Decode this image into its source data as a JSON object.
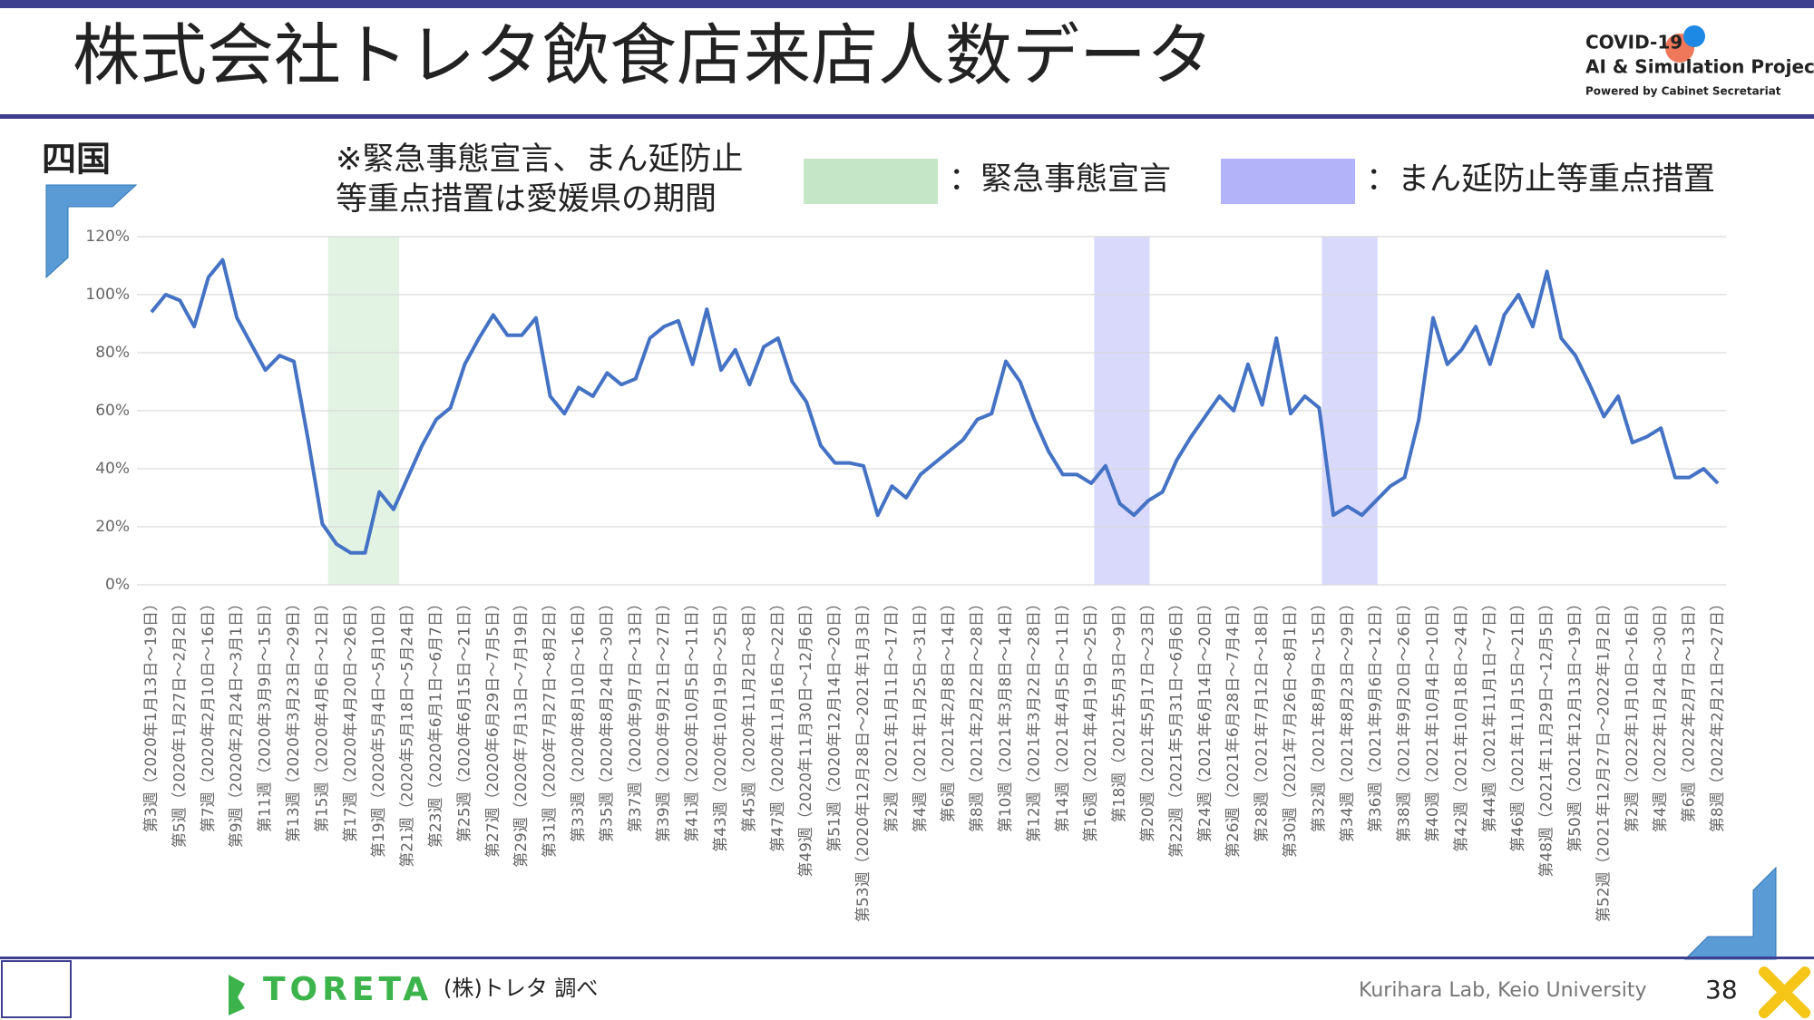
{
  "chart_data": {
    "type": "line",
    "title": "株式会社トレタ飲食店来店人数データ",
    "region": "四国",
    "note_lines": [
      "※緊急事態宣言、まん延防止",
      "等重点措置は愛媛県の期間"
    ],
    "period_legend": [
      {
        "label": "：緊急事態宣言",
        "color": "#c5e7c7",
        "periods": [
          [
            12.4,
            17.4
          ]
        ]
      },
      {
        "label": "：まん延防止等重点措置",
        "color": "#b3b3f9",
        "periods": [
          [
            66.2,
            70.1
          ],
          [
            82.2,
            86.1
          ]
        ]
      }
    ],
    "color": "#4472c4",
    "ylim": [
      0,
      120
    ],
    "yticks": [
      {
        "value": 0,
        "label": "0%"
      },
      {
        "value": 20,
        "label": "20%"
      },
      {
        "value": 40,
        "label": "40%"
      },
      {
        "value": 60,
        "label": "60%"
      },
      {
        "value": 80,
        "label": "80%"
      },
      {
        "value": 100,
        "label": "100%"
      },
      {
        "value": 120,
        "label": "120%"
      }
    ],
    "grid": true,
    "categories": [
      "第3週（2020年1月13日～19日）",
      null,
      "第5週（2020年1月27日～2月2日）",
      null,
      "第7週（2020年2月10日～16日）",
      null,
      "第9週（2020年2月24日～3月1日）",
      null,
      "第11週（2020年3月9日～15日）",
      null,
      "第13週（2020年3月23日～29日）",
      null,
      "第15週（2020年4月6日～12日）",
      null,
      "第17週（2020年4月20日～26日）",
      null,
      "第19週（2020年5月4日～5月10日）",
      null,
      "第21週（2020年5月18日～5月24日）",
      null,
      "第23週（2020年6月1日～6月7日）",
      null,
      "第25週（2020年6月15日～21日）",
      null,
      "第27週（2020年6月29日～7月5日）",
      null,
      "第29週（2020年7月13日～7月19日）",
      null,
      "第31週（2020年7月27日～8月2日）",
      null,
      "第33週（2020年8月10日～16日）",
      null,
      "第35週（2020年8月24日～30日）",
      null,
      "第37週（2020年9月7日～13日）",
      null,
      "第39週（2020年9月21日～27日）",
      null,
      "第41週（2020年10月5日～11日）",
      null,
      "第43週（2020年10月19日～25日）",
      null,
      "第45週（2020年11月2日～8日）",
      null,
      "第47週（2020年11月16日～22日）",
      null,
      "第49週（2020年11月30日～12月6日）",
      null,
      "第51週（2020年12月14日～20日）",
      null,
      "第53週（2020年12月28日～2021年1月3日）",
      null,
      "第2週（2021年1月11日～17日）",
      null,
      "第4週（2021年1月25日～31日）",
      null,
      "第6週（2021年2月8日～14日）",
      null,
      "第8週（2021年2月22日～28日）",
      null,
      "第10週（2021年3月8日～14日）",
      null,
      "第12週（2021年3月22日～28日）",
      null,
      "第14週（2021年4月5日～11日）",
      null,
      "第16週（2021年4月19日～25日）",
      null,
      "第18週（2021年5月3日～9日）",
      null,
      "第20週（2021年5月17日～23日）",
      null,
      "第22週（2021年5月31日～6月6日）",
      null,
      "第24週（2021年6月14日～20日）",
      null,
      "第26週（2021年6月28日～7月4日）",
      null,
      "第28週（2021年7月12日～18日）",
      null,
      "第30週（2021年7月26日～8月1日）",
      null,
      "第32週（2021年8月9日～15日）",
      null,
      "第34週（2021年8月23日～29日）",
      null,
      "第36週（2021年9月6日～12日）",
      null,
      "第38週（2021年9月20日～26日）",
      null,
      "第40週（2021年10月4日～10日）",
      null,
      "第42週（2021年10月18日～24日）",
      null,
      "第44週（2021年11月1日～7日）",
      null,
      "第46週（2021年11月15日～21日）",
      null,
      "第48週（2021年11月29日～12月5日）",
      null,
      "第50週（2021年12月13日～19日）",
      null,
      "第52週（2021年12月27日～2022年1月2日）",
      null,
      "第2週（2022年1月10日～16日）",
      null,
      "第4週（2022年1月24日～30日）",
      null,
      "第6週（2022年2月7日～13日）",
      null,
      "第8週（2022年2月21日～27日）"
    ],
    "values": [
      94,
      100,
      98,
      89,
      106,
      112,
      92,
      83,
      74,
      79,
      77,
      50,
      21,
      14,
      11,
      11,
      32,
      26,
      37,
      48,
      57,
      61,
      76,
      85,
      93,
      86,
      86,
      92,
      65,
      59,
      68,
      65,
      73,
      69,
      71,
      85,
      89,
      91,
      76,
      95,
      74,
      81,
      69,
      82,
      85,
      70,
      63,
      48,
      42,
      42,
      41,
      24,
      34,
      30,
      38,
      42,
      46,
      50,
      57,
      59,
      77,
      70,
      57,
      46,
      38,
      38,
      35,
      41,
      28,
      24,
      29,
      32,
      43,
      51,
      58,
      65,
      60,
      76,
      62,
      85,
      59,
      65,
      61,
      24,
      27,
      24,
      29,
      34,
      37,
      57,
      92,
      76,
      81,
      89,
      76,
      93,
      100,
      89,
      108,
      85,
      79,
      69,
      58,
      65,
      49,
      51,
      54,
      37,
      37,
      40,
      35
    ]
  },
  "logo": {
    "line1": "COVID-19",
    "line2": "AI & Simulation Project",
    "line3": "Powered by Cabinet Secretariat"
  },
  "footer": {
    "brand": "TORETA",
    "source": "(株)トレタ 調べ",
    "credit": "Kurihara Lab, Keio University",
    "page": "38"
  }
}
